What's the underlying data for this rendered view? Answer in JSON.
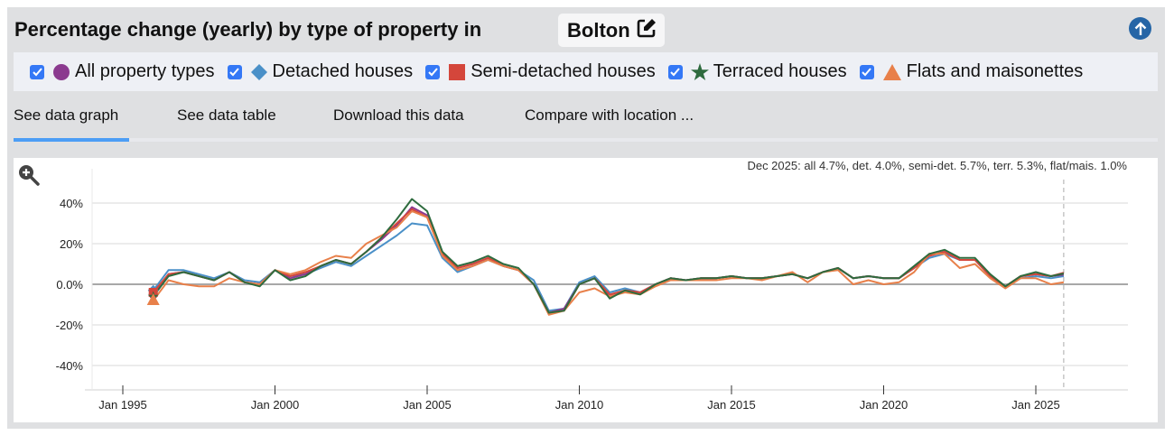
{
  "header": {
    "title": "Percentage change (yearly) by type of property in",
    "location": "Bolton",
    "edit_icon": "pencil-square-icon",
    "scroll_top_icon": "arrow-up-circle-icon"
  },
  "legend": {
    "items": [
      {
        "label": "All property types",
        "checked": true,
        "marker": "circle",
        "color": "#8b3a8f"
      },
      {
        "label": "Detached houses",
        "checked": true,
        "marker": "diamond",
        "color": "#4a90c8"
      },
      {
        "label": "Semi-detached houses",
        "checked": true,
        "marker": "square",
        "color": "#d4463b"
      },
      {
        "label": "Terraced houses",
        "checked": true,
        "marker": "star",
        "color": "#2e6b3e"
      },
      {
        "label": "Flats and maisonettes",
        "checked": true,
        "marker": "triangle",
        "color": "#e8804a"
      }
    ]
  },
  "tabs": [
    {
      "label": "See data graph",
      "active": true
    },
    {
      "label": "See data table",
      "active": false
    },
    {
      "label": "Download this data",
      "active": false
    },
    {
      "label": "Compare with location ...",
      "active": false
    }
  ],
  "chart_data": {
    "type": "line",
    "tooltip": "Dec 2025: all 4.7%, det. 4.0%, semi-det. 5.7%, terr. 5.3%, flat/mais. 1.0%",
    "zoom_icon": "zoom-in-icon",
    "ylim": [
      -50,
      52
    ],
    "yticks": [
      40,
      20,
      0,
      -20,
      -40
    ],
    "ytick_labels": [
      "40%",
      "20%",
      "0.0%",
      "-20%",
      "-40%"
    ],
    "xticks": [
      "1995-01",
      "2000-01",
      "2005-01",
      "2010-01",
      "2015-01",
      "2020-01",
      "2025-01"
    ],
    "xtick_labels": [
      "Jan 1995",
      "Jan 2000",
      "Jan 2005",
      "Jan 2010",
      "Jan 2015",
      "Jan 2020",
      "Jan 2025"
    ],
    "xlim": [
      "1994-07",
      "2027-01"
    ],
    "cursor_date": "2025-12",
    "grid": true,
    "x": [
      "1996-01",
      "1996-07",
      "1997-01",
      "1997-07",
      "1998-01",
      "1998-07",
      "1999-01",
      "1999-07",
      "2000-01",
      "2000-07",
      "2001-01",
      "2001-07",
      "2002-01",
      "2002-07",
      "2003-01",
      "2003-07",
      "2004-01",
      "2004-07",
      "2005-01",
      "2005-07",
      "2006-01",
      "2006-07",
      "2007-01",
      "2007-07",
      "2008-01",
      "2008-07",
      "2009-01",
      "2009-07",
      "2010-01",
      "2010-07",
      "2011-01",
      "2011-07",
      "2012-01",
      "2012-07",
      "2013-01",
      "2013-07",
      "2014-01",
      "2014-07",
      "2015-01",
      "2015-07",
      "2016-01",
      "2016-07",
      "2017-01",
      "2017-07",
      "2018-01",
      "2018-07",
      "2019-01",
      "2019-07",
      "2020-01",
      "2020-07",
      "2021-01",
      "2021-07",
      "2022-01",
      "2022-07",
      "2023-01",
      "2023-07",
      "2024-01",
      "2024-07",
      "2025-01",
      "2025-07",
      "2025-12"
    ],
    "series": [
      {
        "name": "Detached houses",
        "color": "#4a90c8",
        "values": [
          -3,
          7,
          7,
          5,
          3,
          6,
          2,
          1,
          7,
          4,
          5,
          8,
          11,
          9,
          14,
          19,
          24,
          30,
          29,
          13,
          6,
          9,
          12,
          9,
          7,
          2,
          -13,
          -12,
          1,
          4,
          -4,
          -2,
          -4,
          0,
          3,
          2,
          3,
          3,
          4,
          3,
          3,
          4,
          5,
          3,
          6,
          8,
          3,
          4,
          3,
          3,
          8,
          13,
          15,
          12,
          12,
          4,
          -1,
          3,
          4,
          3,
          4.0
        ]
      },
      {
        "name": "All property types",
        "color": "#8b3a8f",
        "values": [
          -5,
          5,
          6,
          4,
          2,
          6,
          1,
          0,
          7,
          3,
          5,
          9,
          12,
          10,
          16,
          22,
          29,
          38,
          34,
          15,
          8,
          10,
          13,
          9,
          7,
          0,
          -14,
          -12,
          0,
          3,
          -6,
          -3,
          -4,
          0,
          3,
          2,
          3,
          3,
          4,
          3,
          3,
          4,
          5,
          3,
          6,
          8,
          3,
          4,
          3,
          3,
          8,
          14,
          16,
          12,
          12,
          4,
          -1,
          4,
          5,
          4,
          4.7
        ]
      },
      {
        "name": "Semi-detached houses",
        "color": "#d4463b",
        "values": [
          -4,
          5,
          6,
          4,
          2,
          6,
          1,
          0,
          7,
          4,
          6,
          9,
          12,
          10,
          16,
          23,
          30,
          37,
          33,
          15,
          8,
          10,
          13,
          9,
          7,
          0,
          -14,
          -13,
          0,
          3,
          -5,
          -3,
          -4,
          0,
          3,
          2,
          3,
          3,
          4,
          3,
          3,
          4,
          5,
          3,
          6,
          8,
          3,
          4,
          3,
          3,
          8,
          14,
          16,
          12,
          12,
          4,
          -1,
          4,
          5,
          4,
          5.7
        ]
      },
      {
        "name": "Flats and maisonettes",
        "color": "#e8804a",
        "values": [
          -8,
          2,
          0,
          -1,
          -1,
          3,
          1,
          0,
          7,
          5,
          7,
          11,
          14,
          13,
          20,
          24,
          28,
          36,
          33,
          14,
          7,
          9,
          12,
          9,
          7,
          0,
          -15,
          -13,
          -4,
          -2,
          -6,
          -4,
          -5,
          -1,
          2,
          2,
          2,
          2,
          3,
          3,
          2,
          4,
          6,
          1,
          6,
          7,
          0,
          2,
          0,
          1,
          6,
          15,
          15,
          8,
          10,
          3,
          -2,
          3,
          3,
          0,
          1.0
        ]
      },
      {
        "name": "Terraced houses",
        "color": "#2e6b3e",
        "values": [
          -6,
          4,
          6,
          4,
          2,
          6,
          1,
          -1,
          7,
          2,
          4,
          9,
          12,
          10,
          16,
          23,
          32,
          42,
          36,
          16,
          9,
          11,
          14,
          10,
          8,
          0,
          -14,
          -13,
          0,
          3,
          -7,
          -3,
          -5,
          0,
          3,
          2,
          3,
          3,
          4,
          3,
          3,
          4,
          5,
          3,
          6,
          8,
          3,
          4,
          3,
          3,
          9,
          15,
          17,
          13,
          13,
          5,
          -1,
          4,
          6,
          4,
          5.3
        ]
      }
    ]
  }
}
